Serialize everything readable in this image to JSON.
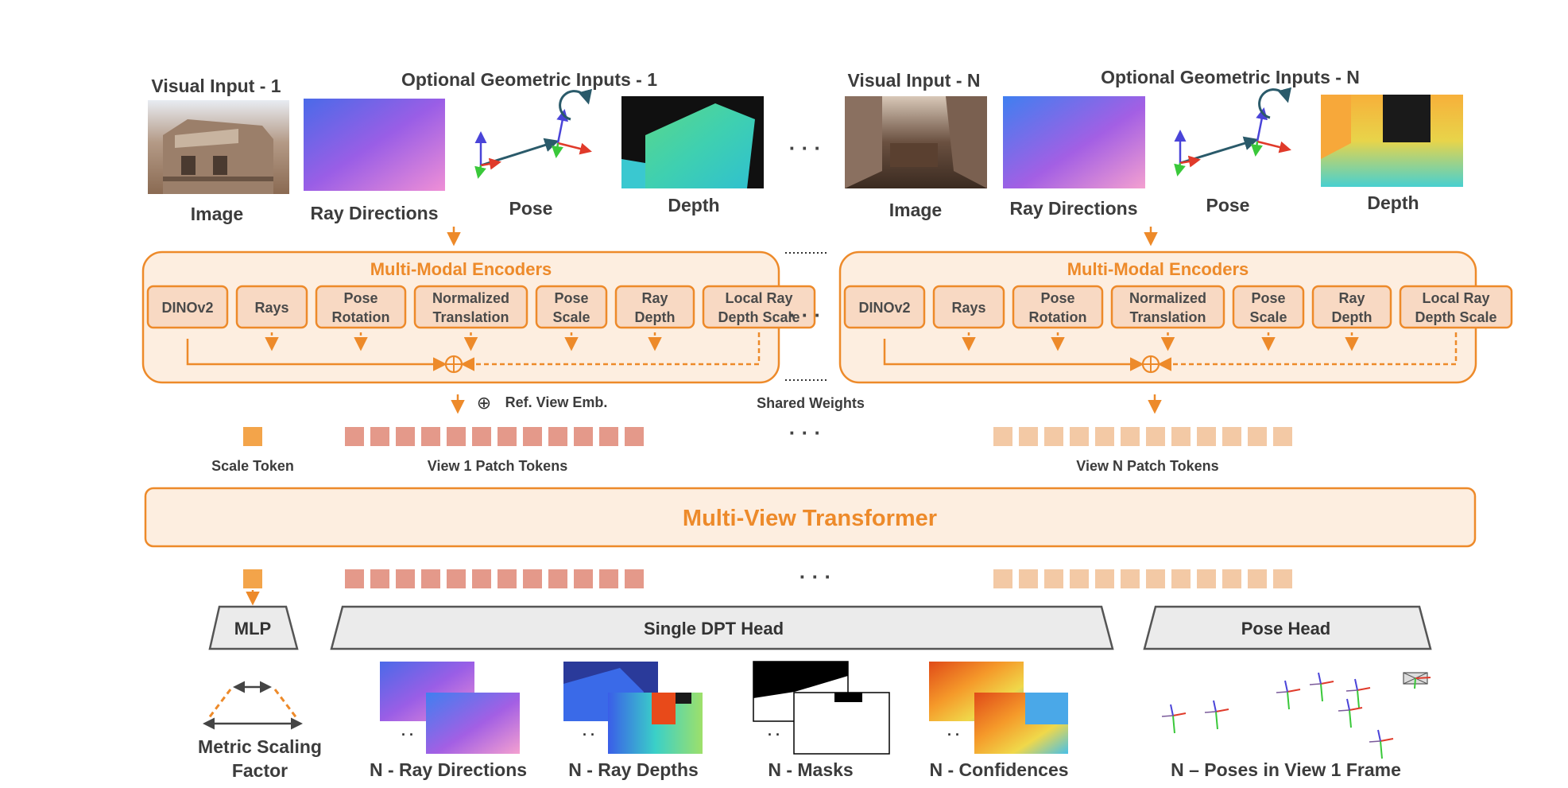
{
  "inputs": {
    "visual_1": "Visual Input - 1",
    "geom_1": "Optional Geometric Inputs - 1",
    "visual_n": "Visual Input - N",
    "geom_n": "Optional Geometric Inputs - N",
    "image": "Image",
    "ray_directions": "Ray Directions",
    "pose": "Pose",
    "depth": "Depth",
    "ellipsis": "· · ·"
  },
  "encoders": {
    "title": "Multi-Modal Encoders",
    "modules": [
      {
        "line1": "DINOv2",
        "line2": ""
      },
      {
        "line1": "Rays",
        "line2": ""
      },
      {
        "line1": "Pose",
        "line2": "Rotation"
      },
      {
        "line1": "Normalized",
        "line2": "Translation"
      },
      {
        "line1": "Pose",
        "line2": "Scale"
      },
      {
        "line1": "Ray",
        "line2": "Depth"
      },
      {
        "line1": "Local Ray",
        "line2": "Depth Scale"
      }
    ],
    "plus": "⊕",
    "ref_view_emb": "Ref. View Emb.",
    "shared_weights": "Shared Weights"
  },
  "tokens": {
    "scale_token": "Scale Token",
    "view1_patch_tokens": "View 1 Patch Tokens",
    "viewN_patch_tokens": "View N Patch Tokens"
  },
  "transformer": {
    "label": "Multi-View Transformer"
  },
  "heads": {
    "mlp": "MLP",
    "dpt": "Single DPT Head",
    "pose": "Pose Head"
  },
  "outputs": {
    "metric_scaling_line1": "Metric Scaling",
    "metric_scaling_line2": "Factor",
    "ray_directions": "N - Ray Directions",
    "ray_depths": "N - Ray Depths",
    "masks": "N - Masks",
    "confidences": "N - Confidences",
    "poses": "N – Poses in View 1 Frame"
  },
  "colors": {
    "accent": "#ed8a2a",
    "encoder_fill": "#fdeee0",
    "module_fill": "#f8d9c3",
    "view1_token": "#e4998a",
    "viewN_token": "#f3c9a5",
    "scale_token": "#f3a44a",
    "head_fill": "#ebebeb"
  }
}
